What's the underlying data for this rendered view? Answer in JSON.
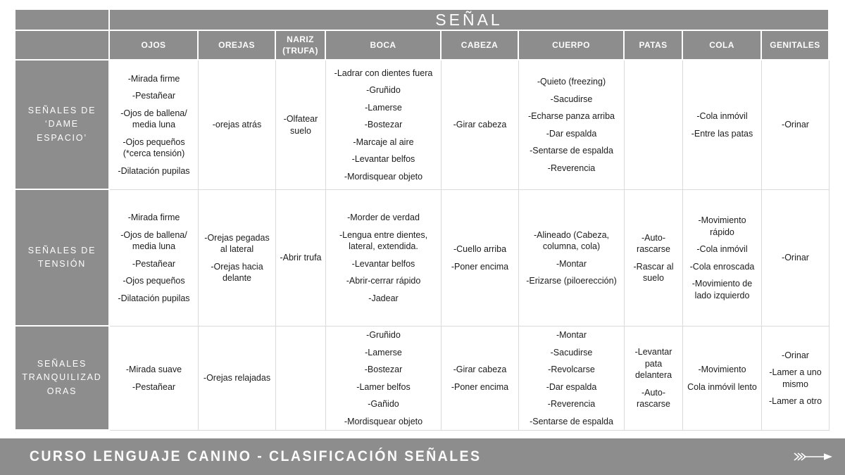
{
  "colors": {
    "table_gray": "#8e8d8d",
    "footer_gray": "#8e8d8d",
    "cell_border_light": "#dadada",
    "header_text": "#ffffff",
    "body_text": "#1c1c1c"
  },
  "table": {
    "title": "SEÑAL",
    "columns": [
      "OJOS",
      "OREJAS",
      "NARIZ (TRUFA)",
      "BOCA",
      "CABEZA",
      "CUERPO",
      "PATAS",
      "COLA",
      "GENITALES"
    ],
    "rows": [
      {
        "label": "SEÑALES DE ‘DAME ESPACIO’",
        "cells": [
          [
            "-Mirada firme",
            "-Pestañear",
            "-Ojos de ballena/ media luna",
            "-Ojos pequeños (*cerca tensión)",
            "-Dilatación pupilas"
          ],
          [
            "-orejas atrás"
          ],
          [
            "-Olfatear suelo"
          ],
          [
            "-Ladrar con dientes fuera",
            "-Gruñido",
            "-Lamerse",
            "-Bostezar",
            "-Marcaje al aire",
            "-Levantar belfos",
            "-Mordisquear objeto"
          ],
          [
            "-Girar cabeza"
          ],
          [
            "-Quieto (freezing)",
            "-Sacudirse",
            "-Echarse panza arriba",
            "-Dar espalda",
            "-Sentarse de espalda",
            "-Reverencia"
          ],
          [],
          [
            "-Cola inmóvil",
            "-Entre las patas"
          ],
          [
            "-Orinar"
          ]
        ]
      },
      {
        "label": "SEÑALES DE TENSIÓN",
        "cells": [
          [
            "-Mirada firme",
            "-Ojos de ballena/ media luna",
            "-Pestañear",
            "-Ojos pequeños",
            "-Dilatación pupilas"
          ],
          [
            "-Orejas pegadas al lateral",
            "-Orejas hacia delante"
          ],
          [
            "-Abrir trufa"
          ],
          [
            "-Morder de verdad",
            "-Lengua entre dientes, lateral, extendida.",
            "-Levantar belfos",
            "-Abrir-cerrar rápido",
            "-Jadear"
          ],
          [
            "-Cuello arriba",
            "-Poner encima"
          ],
          [
            "-Alineado (Cabeza, columna, cola)",
            "-Montar",
            "-Erizarse (piloerección)"
          ],
          [
            "-Auto-rascarse",
            "-Rascar al suelo"
          ],
          [
            "-Movimiento rápido",
            "-Cola inmóvil",
            "-Cola enroscada",
            "-Movimiento de lado izquierdo"
          ],
          [
            "-Orinar"
          ]
        ]
      },
      {
        "label": "SEÑALES TRANQUILIZADORAS",
        "cells": [
          [
            "-Mirada suave",
            "-Pestañear"
          ],
          [
            "-Orejas relajadas"
          ],
          [],
          [
            "-Gruñido",
            "-Lamerse",
            "-Bostezar",
            "-Lamer belfos",
            "-Gañido",
            "-Mordisquear objeto"
          ],
          [
            "-Girar cabeza",
            "-Poner encima"
          ],
          [
            "-Montar",
            "-Sacudirse",
            "-Revolcarse",
            "-Dar espalda",
            "-Reverencia",
            "-Sentarse de espalda"
          ],
          [
            "-Levantar pata delantera",
            "-Auto-rascarse"
          ],
          [
            "-Movimiento",
            "Cola inmóvil lento"
          ],
          [
            "-Orinar",
            "-Lamer a uno mismo",
            "-Lamer a otro"
          ]
        ]
      }
    ]
  },
  "footer": {
    "title": "CURSO LENGUAJE CANINO - CLASIFICACIÓN SEÑALES",
    "icon": "arrow-right-icon"
  }
}
